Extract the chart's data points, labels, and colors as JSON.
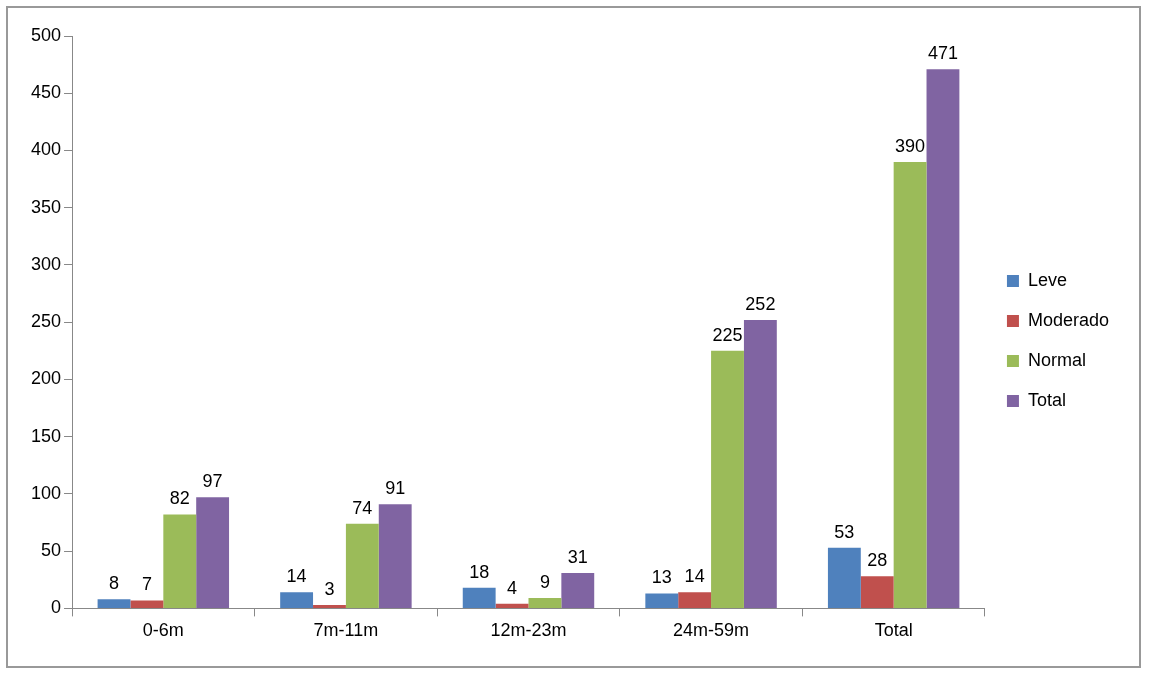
{
  "chart_data": {
    "type": "bar",
    "categories": [
      "0-6m",
      "7m-11m",
      "12m-23m",
      "24m-59m",
      "Total"
    ],
    "series": [
      {
        "name": "Leve",
        "color": "#4f81bd",
        "values": [
          8,
          14,
          18,
          13,
          53
        ]
      },
      {
        "name": "Moderado",
        "color": "#c0504d",
        "values": [
          7,
          3,
          4,
          14,
          28
        ]
      },
      {
        "name": "Normal",
        "color": "#9bbb59",
        "values": [
          82,
          74,
          9,
          225,
          390
        ]
      },
      {
        "name": "Total",
        "color": "#8064a2",
        "values": [
          97,
          91,
          31,
          252,
          471
        ]
      }
    ],
    "ylim": [
      0,
      500
    ],
    "yticks": [
      0,
      50,
      100,
      150,
      200,
      250,
      300,
      350,
      400,
      450,
      500
    ],
    "grid": false,
    "legend": "right",
    "data_labels": true
  }
}
